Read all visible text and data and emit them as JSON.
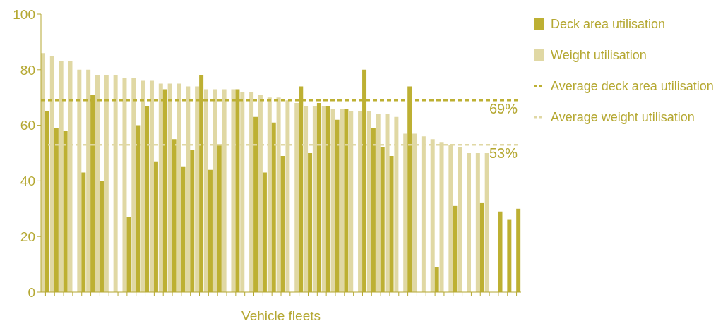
{
  "chart_data": {
    "type": "bar",
    "xlabel": "Vehicle fleets",
    "categories": [
      null,
      null,
      null,
      null,
      null,
      null,
      null,
      null,
      null,
      null,
      null,
      null,
      null,
      null,
      null,
      null,
      null,
      null,
      null,
      null,
      null,
      null,
      null,
      null,
      null,
      null,
      null,
      null,
      null,
      null,
      null,
      null,
      null,
      null,
      null,
      null,
      null,
      null,
      null,
      null,
      null,
      null,
      null,
      null,
      null,
      null,
      null,
      null,
      null,
      null,
      null,
      null,
      null
    ],
    "series": [
      {
        "name": "Deck area utilisation",
        "color": "#bdb033",
        "values": [
          65,
          59,
          58,
          null,
          43,
          71,
          40,
          null,
          null,
          27,
          60,
          67,
          47,
          73,
          55,
          45,
          51,
          78,
          44,
          53,
          null,
          73,
          null,
          63,
          43,
          61,
          49,
          null,
          74,
          50,
          68,
          67,
          62,
          66,
          null,
          80,
          59,
          52,
          49,
          null,
          74,
          null,
          null,
          9,
          null,
          31,
          null,
          null,
          32,
          null,
          29,
          26,
          30
        ]
      },
      {
        "name": "Weight utilisation",
        "color": "#e0d8a4",
        "values": [
          86,
          85,
          83,
          83,
          80,
          80,
          78,
          78,
          78,
          77,
          77,
          76,
          76,
          75,
          75,
          75,
          74,
          74,
          73,
          73,
          73,
          73,
          72,
          72,
          71,
          70,
          70,
          69,
          68,
          67,
          67,
          67,
          66,
          66,
          65,
          65,
          65,
          64,
          64,
          63,
          57,
          57,
          56,
          55,
          54,
          53,
          52,
          50,
          50,
          50,
          null,
          null,
          null
        ]
      }
    ],
    "ref_lines": [
      {
        "axis": "y",
        "value": 69,
        "label": "Average deck area utilisation",
        "color": "#bdb033",
        "line_style": "dashed"
      },
      {
        "axis": "y",
        "value": 53,
        "label": "Average weight utilisation",
        "color": "#e0d8a4",
        "line_style": "dashed"
      }
    ],
    "annotations": [
      {
        "text": "69%",
        "y": 69
      },
      {
        "text": "53%",
        "y": 53
      }
    ],
    "ylim": [
      0,
      100
    ],
    "yticks": [
      0,
      20,
      40,
      60,
      80,
      100
    ],
    "grid": false,
    "legend": "top right"
  }
}
